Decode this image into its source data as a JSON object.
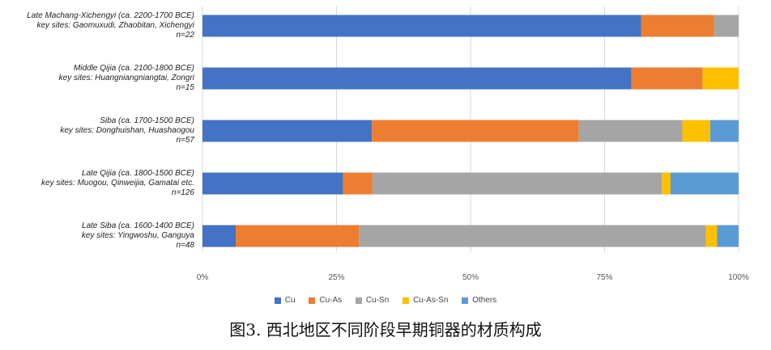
{
  "chart_data": {
    "type": "bar",
    "orientation": "horizontal",
    "stacked": true,
    "normalized": true,
    "categories": [
      {
        "lines": [
          "Late Machang-Xichengyi (ca. 2200-1700 BCE)",
          "key sites: Gaomuxudi, Zhaobitan, Xichengyi",
          "n=22"
        ]
      },
      {
        "lines": [
          "Middle Qijia (ca. 2100-1800 BCE)",
          "key sites: Huangniangniangtai, Zongri",
          "n=15"
        ]
      },
      {
        "lines": [
          "Siba (ca. 1700-1500 BCE)",
          "key sites: Donghuishan, Huashaogou",
          "n=57"
        ]
      },
      {
        "lines": [
          "Late Qijia (ca. 1800-1500 BCE)",
          "key sites: Muogou, Qinweijia, Gamatai etc.",
          "n=126"
        ]
      },
      {
        "lines": [
          "Late Siba (ca. 1600-1400 BCE)",
          "key sites: Yingwoshu, Ganguya",
          "n=48"
        ]
      }
    ],
    "series": [
      {
        "name": "Cu",
        "color": "#4472C4",
        "values": [
          0.818,
          0.8,
          0.316,
          0.262,
          0.062
        ]
      },
      {
        "name": "Cu-As",
        "color": "#ED7D31",
        "values": [
          0.136,
          0.133,
          0.386,
          0.055,
          0.23
        ]
      },
      {
        "name": "Cu-Sn",
        "color": "#A5A5A5",
        "values": [
          0.046,
          0.0,
          0.193,
          0.54,
          0.647
        ]
      },
      {
        "name": "Cu-As-Sn",
        "color": "#FFC000",
        "values": [
          0.0,
          0.067,
          0.052,
          0.016,
          0.021
        ]
      },
      {
        "name": "Others",
        "color": "#5B9BD5",
        "values": [
          0.0,
          0.0,
          0.053,
          0.127,
          0.04
        ]
      }
    ],
    "xticks": [
      "0%",
      "25%",
      "50%",
      "75%",
      "100%"
    ],
    "xlim": [
      0,
      1
    ],
    "grid": true,
    "legend_position": "bottom"
  },
  "caption": "图3. 西北地区不同阶段早期铜器的材质构成"
}
